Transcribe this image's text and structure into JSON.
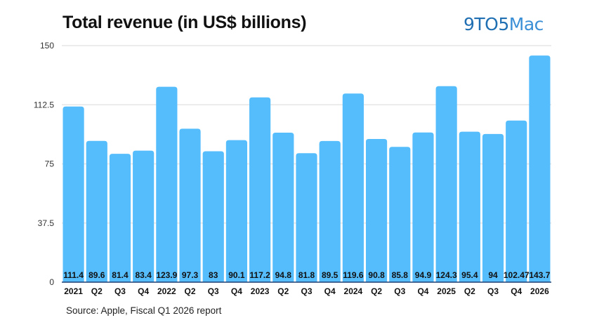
{
  "header": {
    "title": "Total revenue (in US$ billions)",
    "brand_part1": "9TO5",
    "brand_part2": "Mac"
  },
  "footer": {
    "source": "Source: Apple, Fiscal Q1 2026 report"
  },
  "colors": {
    "bar": "#56bdfc",
    "grid": "#e6e6e6",
    "axis": "#1c3f73"
  },
  "chart_data": {
    "type": "bar",
    "title": "Total revenue (in US$ billions)",
    "xlabel": "",
    "ylabel": "",
    "ylim": [
      0,
      150
    ],
    "yticks": [
      0,
      37.5,
      75,
      112.5,
      150
    ],
    "ytick_labels": [
      "0",
      "37.5",
      "75",
      "112.5",
      "150"
    ],
    "grid": true,
    "legend": "none",
    "categories": [
      "2021",
      "Q2",
      "Q3",
      "Q4",
      "2022",
      "Q2",
      "Q3",
      "Q4",
      "2023",
      "Q2",
      "Q3",
      "Q4",
      "2024",
      "Q2",
      "Q3",
      "Q4",
      "2025",
      "Q2",
      "Q3",
      "Q4",
      "2026"
    ],
    "values": [
      111.4,
      89.6,
      81.4,
      83.4,
      123.9,
      97.3,
      83,
      90.1,
      117.2,
      94.8,
      81.8,
      89.5,
      119.6,
      90.8,
      85.8,
      94.9,
      124.3,
      95.4,
      94,
      102.47,
      143.7
    ],
    "value_labels": [
      "111.4",
      "89.6",
      "81.4",
      "83.4",
      "123.9",
      "97.3",
      "83",
      "90.1",
      "117.2",
      "94.8",
      "81.8",
      "89.5",
      "119.6",
      "90.8",
      "85.8",
      "94.9",
      "124.3",
      "95.4",
      "94",
      "102.47",
      "143.7"
    ]
  }
}
